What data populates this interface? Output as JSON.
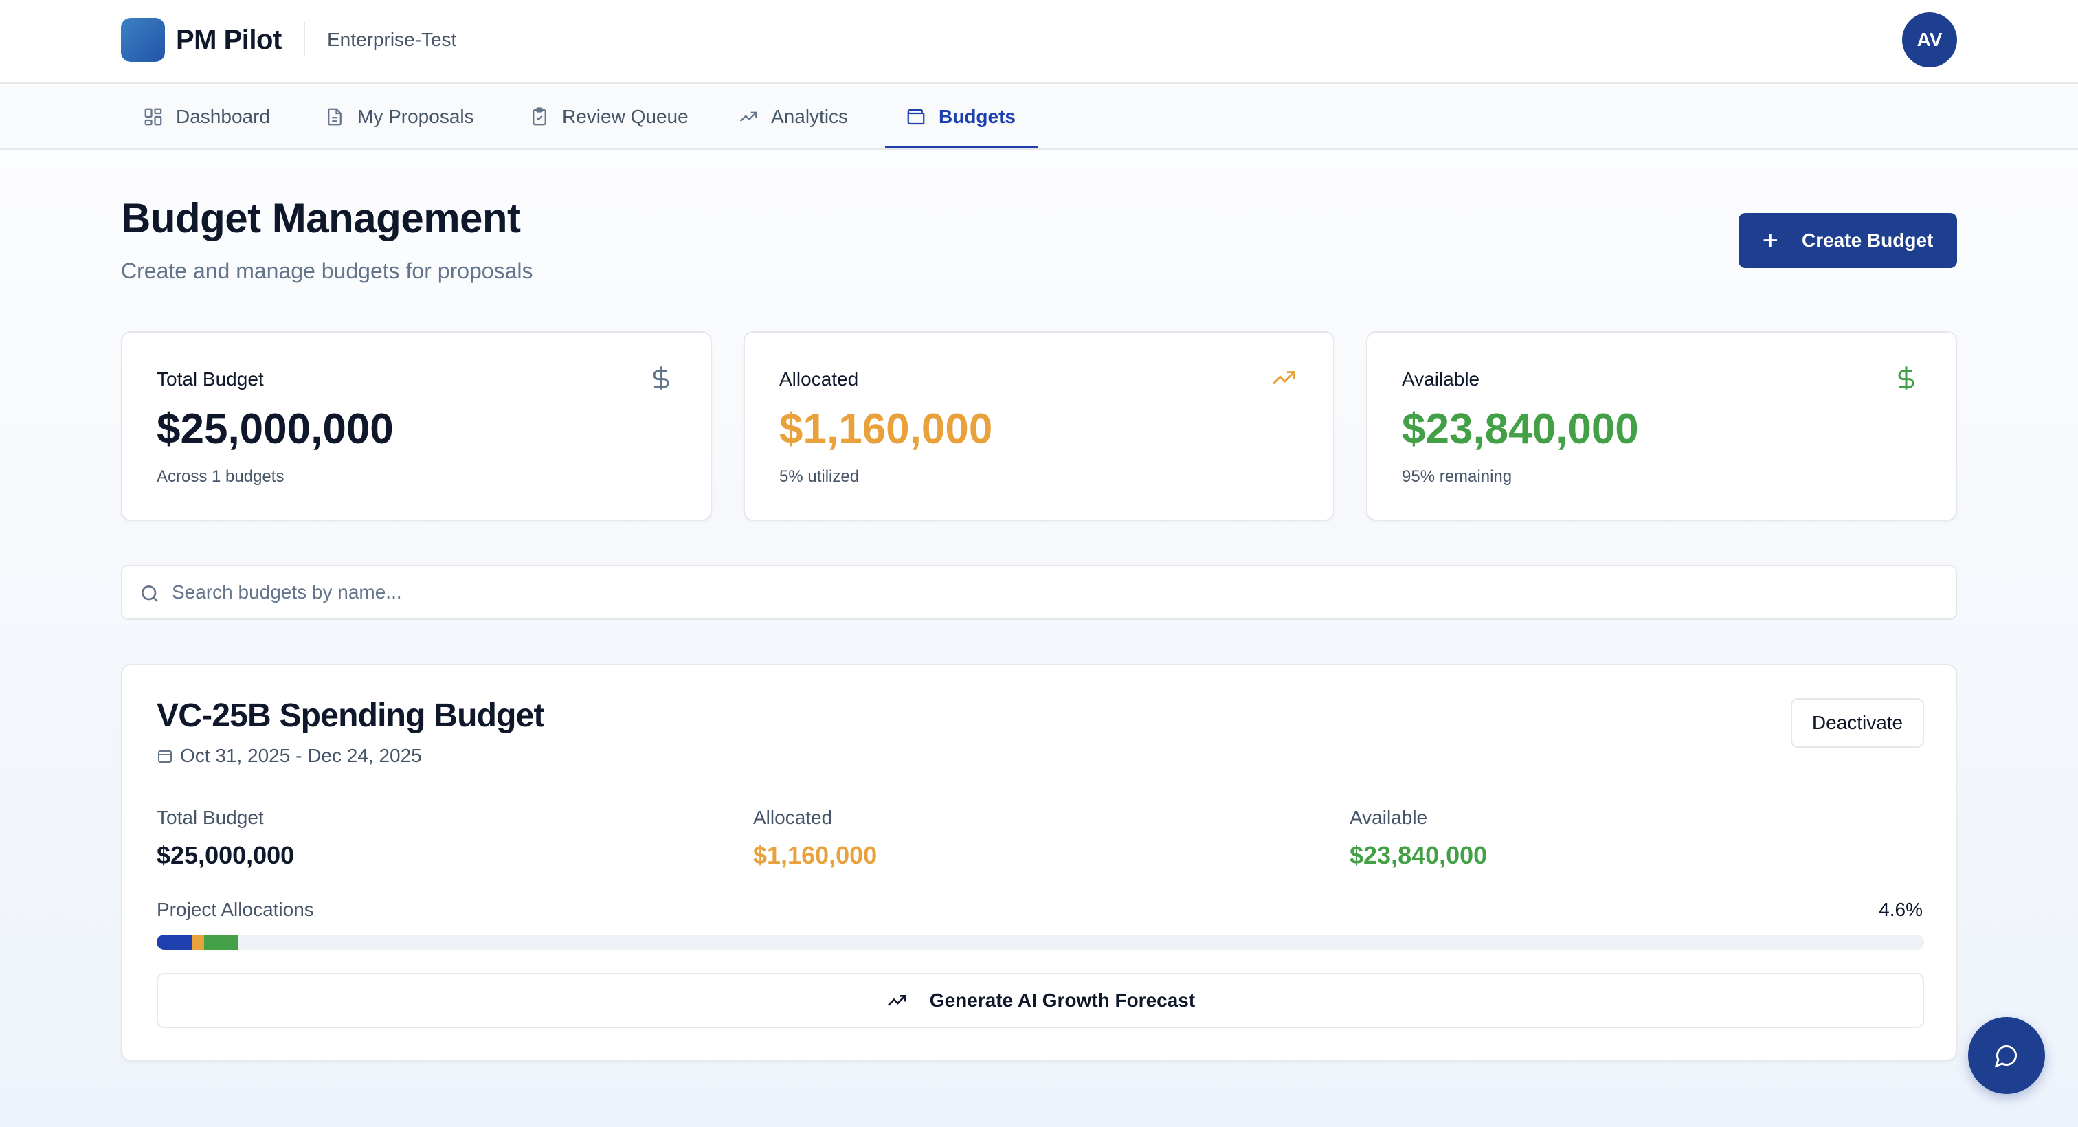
{
  "header": {
    "brand": "PM Pilot",
    "org": "Enterprise-Test",
    "avatar_initials": "AV"
  },
  "nav": {
    "tabs": [
      {
        "label": "Dashboard",
        "icon": "grid-icon",
        "active": false
      },
      {
        "label": "My Proposals",
        "icon": "document-icon",
        "active": false
      },
      {
        "label": "Review Queue",
        "icon": "clipboard-check-icon",
        "active": false
      },
      {
        "label": "Analytics",
        "icon": "trending-up-icon",
        "active": false
      },
      {
        "label": "Budgets",
        "icon": "wallet-icon",
        "active": true
      }
    ]
  },
  "page": {
    "title": "Budget Management",
    "subtitle": "Create and manage budgets for proposals",
    "create_button": "Create Budget"
  },
  "stats": [
    {
      "label": "Total Budget",
      "value": "$25,000,000",
      "note": "Across 1 budgets",
      "icon": "dollar-icon",
      "color": "#0f172a",
      "icon_color": "#64748b"
    },
    {
      "label": "Allocated",
      "value": "$1,160,000",
      "note": "5% utilized",
      "icon": "trending-up-icon",
      "color": "#e9a23b",
      "icon_color": "#e9a23b"
    },
    {
      "label": "Available",
      "value": "$23,840,000",
      "note": "95% remaining",
      "icon": "dollar-icon",
      "color": "#43a047",
      "icon_color": "#43a047"
    }
  ],
  "search": {
    "placeholder": "Search budgets by name...",
    "value": ""
  },
  "budget": {
    "name": "VC-25B Spending Budget",
    "dates": "Oct 31, 2025 - Dec 24, 2025",
    "deactivate_button": "Deactivate",
    "metrics": [
      {
        "label": "Total Budget",
        "value": "$25,000,000",
        "color": "#0f172a"
      },
      {
        "label": "Allocated",
        "value": "$1,160,000",
        "color": "#e9a23b"
      },
      {
        "label": "Available",
        "value": "$23,840,000",
        "color": "#43a047"
      }
    ],
    "allocations_label": "Project Allocations",
    "allocations_percent": "4.6%",
    "allocation_segments": [
      {
        "fraction": 0.02,
        "color": "#1e40af"
      },
      {
        "fraction": 0.007,
        "color": "#e9a23b"
      },
      {
        "fraction": 0.019,
        "color": "#43a047"
      }
    ],
    "forecast_button": "Generate AI Growth Forecast"
  },
  "colors": {
    "primary": "#1e3f8f",
    "accent_orange": "#e9a23b",
    "accent_green": "#43a047"
  },
  "chat": {
    "icon": "chat-bubble-icon"
  }
}
